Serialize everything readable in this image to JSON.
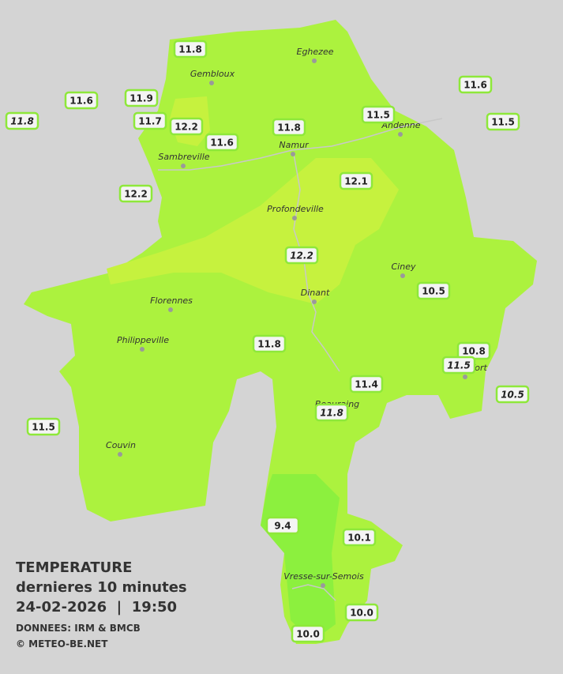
{
  "map": {
    "towns": [
      "Eghezee",
      "Gembloux",
      "Andenne",
      "Namur",
      "Sambreville",
      "Profondeville",
      "Ciney",
      "Dinant",
      "Florennes",
      "Philippeville",
      "Rochefort",
      "Beauraing",
      "Couvin",
      "Vresse-sur-Semois"
    ],
    "stations": [
      {
        "label": "11.8",
        "italic": false
      },
      {
        "label": "11.9",
        "italic": false
      },
      {
        "label": "11.6",
        "italic": false
      },
      {
        "label": "11.8",
        "italic": true
      },
      {
        "label": "11.7",
        "italic": false
      },
      {
        "label": "12.2",
        "italic": false
      },
      {
        "label": "11.6",
        "italic": false
      },
      {
        "label": "11.8",
        "italic": false
      },
      {
        "label": "11.5",
        "italic": false
      },
      {
        "label": "11.6",
        "italic": false
      },
      {
        "label": "11.5",
        "italic": false
      },
      {
        "label": "12.1",
        "italic": false
      },
      {
        "label": "12.2",
        "italic": false
      },
      {
        "label": "12.2",
        "italic": true
      },
      {
        "label": "10.5",
        "italic": false
      },
      {
        "label": "11.8",
        "italic": false
      },
      {
        "label": "10.8",
        "italic": false
      },
      {
        "label": "11.5",
        "italic": true
      },
      {
        "label": "10.5",
        "italic": true
      },
      {
        "label": "11.4",
        "italic": false
      },
      {
        "label": "11.8",
        "italic": true
      },
      {
        "label": "11.5",
        "italic": false
      },
      {
        "label": "9.4",
        "italic": false
      },
      {
        "label": "10.1",
        "italic": false
      },
      {
        "label": "10.0",
        "italic": false
      },
      {
        "label": "10.0",
        "italic": false
      }
    ]
  },
  "legend": {
    "title": "TEMPERATURE",
    "subtitle": "dernieres 10 minutes",
    "datetime": "24-02-2026  |  19:50",
    "source": "DONNEES: IRM & BMCB",
    "copyright": "© METEO-BE.NET"
  }
}
